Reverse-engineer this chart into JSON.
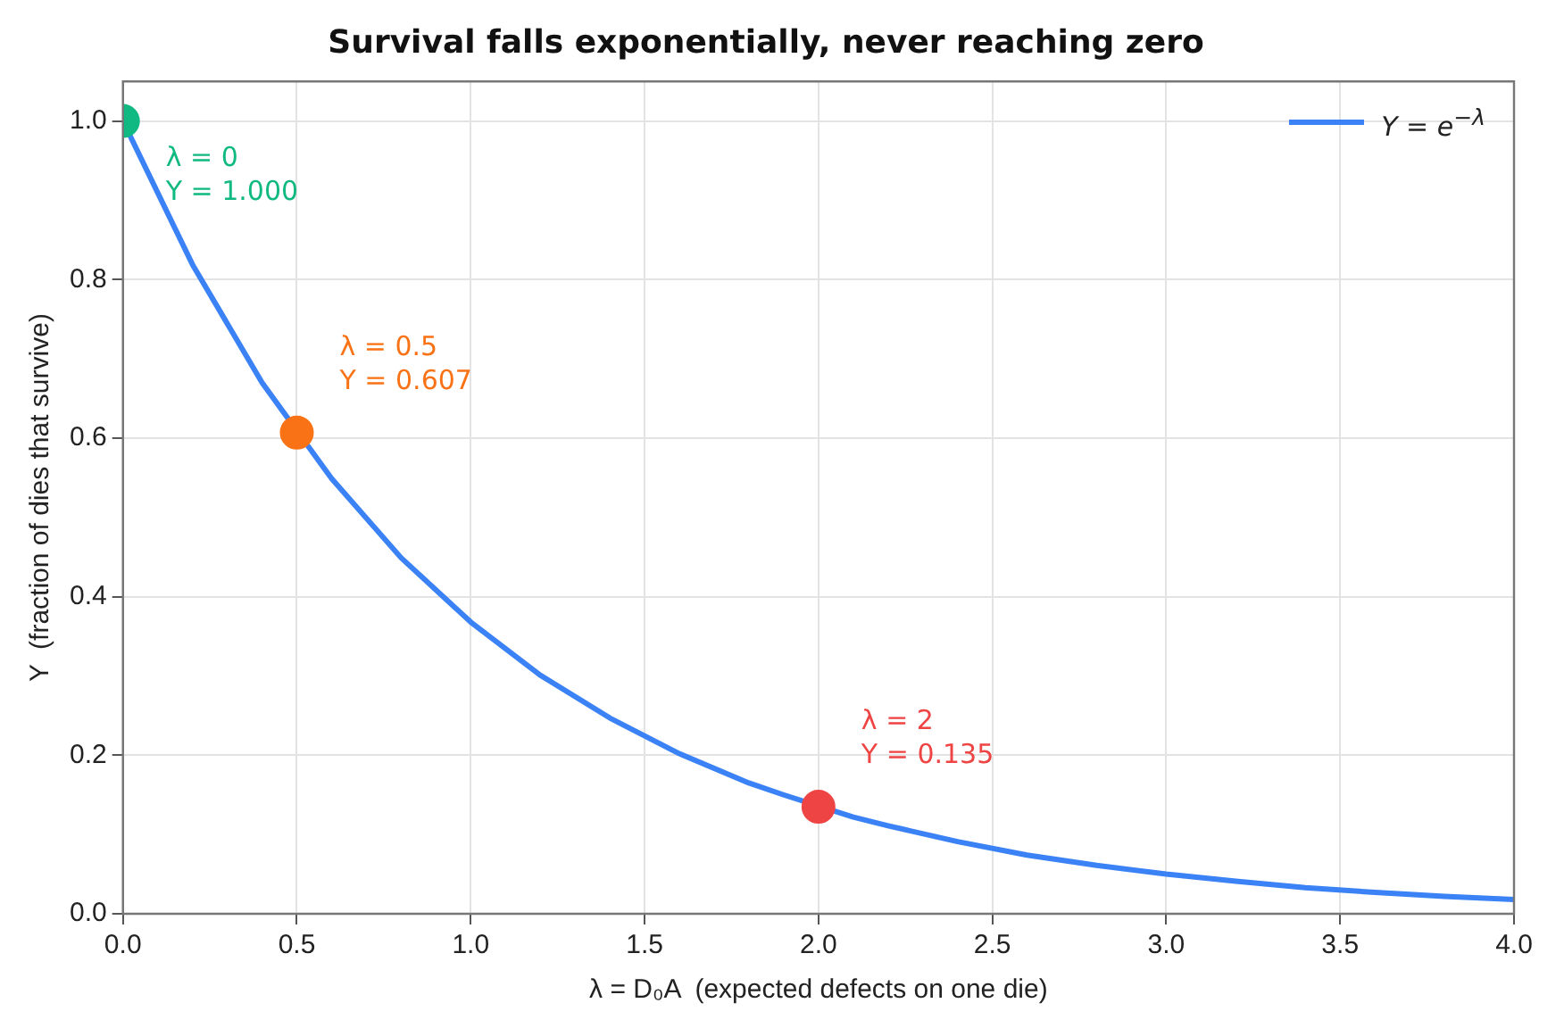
{
  "chart_data": {
    "type": "line",
    "title": "Survival falls exponentially, never reaching zero",
    "xlabel": "λ = D₀A  (expected defects on one die)",
    "ylabel": "Y  (fraction of dies that survive)",
    "series": [
      {
        "type": "line",
        "name": "Y = e$^{−λ}$",
        "color": "#3b82f6",
        "marker": "none",
        "line_style": "solid",
        "x": [
          0,
          0.2,
          0.4,
          0.6,
          0.8,
          1.0,
          1.2,
          1.4,
          1.6,
          1.8,
          1.9,
          2.1,
          2.2,
          2.4,
          2.6,
          2.8,
          3.0,
          3.2,
          3.4,
          3.6,
          3.8,
          4.0
        ],
        "values": [
          1,
          0.819,
          0.67,
          0.549,
          0.449,
          0.368,
          0.301,
          0.247,
          0.202,
          0.165,
          0.15,
          0.122,
          0.111,
          0.091,
          0.074,
          0.061,
          0.05,
          0.041,
          0.033,
          0.027,
          0.022,
          0.018
        ]
      },
      {
        "type": "scatter",
        "marker": "circle",
        "colors": [
          "#10b981",
          "#f97316",
          "#ef4444"
        ],
        "x": [
          0,
          0.5,
          2
        ],
        "values": [
          1,
          0.607,
          0.135
        ]
      }
    ],
    "annotations": [
      {
        "text": "λ = 0\nY = 1.000",
        "x": 0,
        "y": 1
      },
      {
        "text": "λ = 0.5\nY = 0.607",
        "x": 0.5,
        "y": 0.607
      },
      {
        "text": "λ = 2\nY = 0.135",
        "x": 2,
        "y": 0.135
      }
    ],
    "xlim": [
      0,
      4
    ],
    "xticks": [
      {
        "value": 0,
        "label": "0.0"
      },
      {
        "value": 0.5,
        "label": "0.5"
      },
      {
        "value": 1,
        "label": "1.0"
      },
      {
        "value": 1.5,
        "label": "1.5"
      },
      {
        "value": 2,
        "label": "2.0"
      },
      {
        "value": 2.5,
        "label": "2.5"
      },
      {
        "value": 3,
        "label": "3.0"
      },
      {
        "value": 3.5,
        "label": "3.5"
      },
      {
        "value": 4,
        "label": "4.0"
      }
    ],
    "ylim": [
      0,
      1.05
    ],
    "yticks": [
      {
        "value": 0,
        "label": "0.0"
      },
      {
        "value": 0.2,
        "label": "0.2"
      },
      {
        "value": 0.4,
        "label": "0.4"
      },
      {
        "value": 0.6,
        "label": "0.6"
      },
      {
        "value": 0.8,
        "label": "0.8"
      },
      {
        "value": 1,
        "label": "1.0"
      }
    ],
    "grid": true,
    "legend": "top right"
  }
}
